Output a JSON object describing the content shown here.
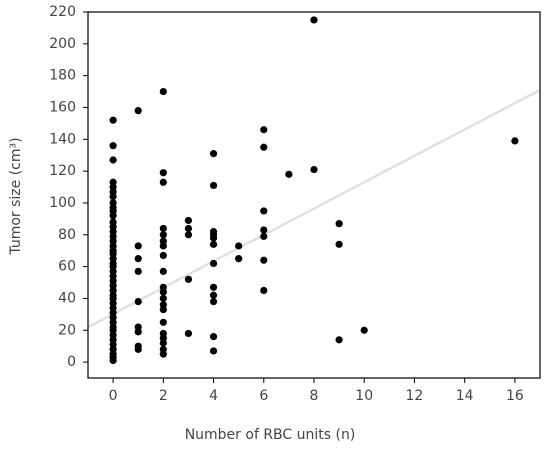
{
  "chart_data": {
    "type": "scatter",
    "x_label": "Number of RBC units (n)",
    "y_label": "Tumor size (cm³)",
    "xlim": [
      -1,
      17
    ],
    "ylim": [
      -10,
      220
    ],
    "xticks": [
      0,
      2,
      4,
      6,
      8,
      10,
      12,
      14,
      16
    ],
    "yticks": [
      0,
      20,
      40,
      60,
      80,
      100,
      120,
      140,
      160,
      180,
      200,
      220
    ],
    "series": [
      {
        "color": "#000000",
        "x": [
          0,
          0,
          0,
          0,
          0,
          0,
          0,
          0,
          0,
          0,
          0,
          0,
          0,
          0,
          0,
          0,
          0,
          0,
          0,
          0,
          0,
          0,
          0,
          0,
          0,
          0,
          0,
          0,
          0,
          0,
          0,
          0,
          0,
          0,
          0,
          0,
          0,
          0,
          0,
          0,
          0,
          0,
          0,
          1,
          1,
          1,
          1,
          1,
          1,
          1,
          1,
          1,
          2,
          2,
          2,
          2,
          2,
          2,
          2,
          2,
          2,
          2,
          2,
          2,
          2,
          2,
          2,
          2,
          2,
          2,
          2,
          2,
          3,
          3,
          3,
          3,
          3,
          4,
          4,
          4,
          4,
          4,
          4,
          4,
          4,
          4,
          4,
          4,
          4,
          5,
          5,
          6,
          6,
          6,
          6,
          6,
          6,
          6,
          7,
          8,
          8,
          9,
          9,
          9,
          10,
          16
        ],
        "values": [
          152,
          136,
          127,
          113,
          110,
          107,
          104,
          100,
          97,
          95,
          92,
          88,
          85,
          82,
          79,
          76,
          73,
          70,
          68,
          65,
          62,
          60,
          57,
          54,
          51,
          48,
          45,
          42,
          40,
          37,
          34,
          31,
          28,
          25,
          22,
          20,
          17,
          14,
          11,
          8,
          5,
          3,
          1,
          158,
          73,
          65,
          57,
          38,
          22,
          19,
          10,
          8,
          170,
          119,
          113,
          84,
          80,
          76,
          73,
          67,
          57,
          47,
          44,
          40,
          36,
          33,
          25,
          18,
          15,
          12,
          8,
          5,
          89,
          84,
          80,
          52,
          18,
          131,
          111,
          82,
          80,
          78,
          74,
          62,
          47,
          42,
          38,
          16,
          7,
          73,
          65,
          146,
          135,
          95,
          83,
          79,
          64,
          45,
          118,
          215,
          121,
          87,
          74,
          14,
          20,
          139
        ]
      }
    ],
    "trend": {
      "color": "#e0e0e0",
      "x": [
        -1,
        17
      ],
      "y": [
        22,
        171
      ]
    }
  }
}
